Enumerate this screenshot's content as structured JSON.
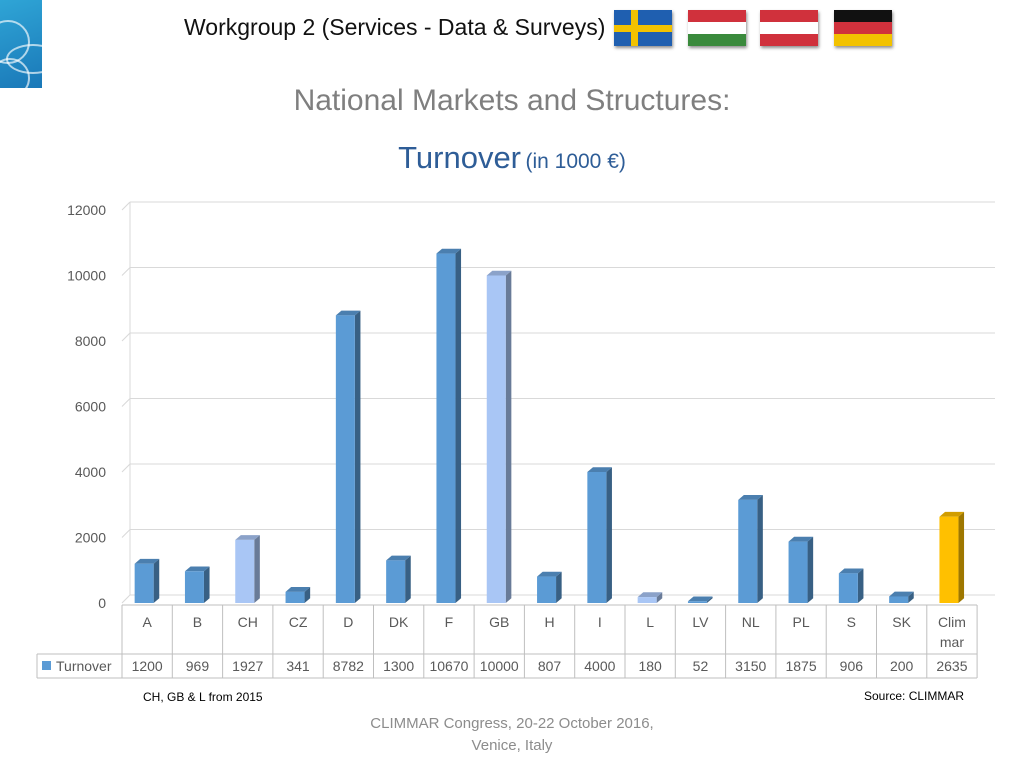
{
  "header": {
    "title": "Workgroup 2 (Services - Data & Surveys)",
    "flags": [
      {
        "name": "sweden-flag",
        "colors": [
          "#1f5fb0",
          "#f2c200"
        ]
      },
      {
        "name": "hungary-flag",
        "colors": [
          "#d0313c",
          "#ffffff",
          "#3a8a3c"
        ]
      },
      {
        "name": "austria-flag",
        "colors": [
          "#d0313c",
          "#ffffff",
          "#d0313c"
        ]
      },
      {
        "name": "germany-flag",
        "colors": [
          "#111111",
          "#d0313c",
          "#f2c200"
        ]
      }
    ]
  },
  "slide": {
    "title": "National Markets and Structures:",
    "subtitle_main": "Turnover",
    "subtitle_unit": "(in 1000 €)"
  },
  "chart_data": {
    "type": "bar",
    "categories": [
      "A",
      "B",
      "CH",
      "CZ",
      "D",
      "DK",
      "F",
      "GB",
      "H",
      "I",
      "L",
      "LV",
      "NL",
      "PL",
      "S",
      "SK",
      "Clim mar"
    ],
    "series": [
      {
        "name": "Turnover",
        "values": [
          1200,
          969,
          1927,
          341,
          8782,
          1300,
          10670,
          10000,
          807,
          4000,
          180,
          52,
          3150,
          1875,
          906,
          200,
          2635
        ]
      }
    ],
    "y_ticks": [
      0,
      2000,
      4000,
      6000,
      8000,
      10000,
      12000
    ],
    "ylim": [
      0,
      12000
    ],
    "grid": true,
    "legend": "data-table",
    "colors": {
      "default": "#5b9bd5",
      "from_2015": "#a9c6f5",
      "climmar": "#ffc000"
    },
    "highlight_from_2015": [
      "CH",
      "GB",
      "L"
    ],
    "highlight_total": [
      "Clim mar"
    ]
  },
  "notes": {
    "left": "CH, GB & L from 2015",
    "right": "Source: CLIMMAR"
  },
  "footer": {
    "line1": "CLIMMAR Congress, 20-22 October 2016,",
    "line2": "Venice, Italy"
  }
}
